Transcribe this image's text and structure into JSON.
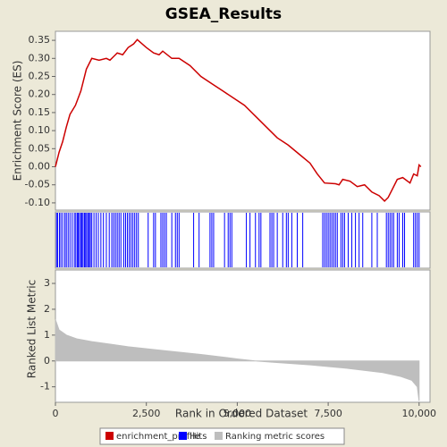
{
  "chart_data": [
    {
      "type": "line",
      "title": "GSEA_Results",
      "ylabel": "Enrichment Score (ES)",
      "xlim": [
        0,
        10300
      ],
      "ylim": [
        -0.12,
        0.375
      ],
      "yticks": [
        {
          "value": 0.35,
          "label": "0.35"
        },
        {
          "value": 0.3,
          "label": "0.30"
        },
        {
          "value": 0.25,
          "label": "0.25"
        },
        {
          "value": 0.2,
          "label": "0.20"
        },
        {
          "value": 0.15,
          "label": "0.15"
        },
        {
          "value": 0.1,
          "label": "0.10"
        },
        {
          "value": 0.05,
          "label": "0.05"
        },
        {
          "value": 0,
          "label": "0.00"
        },
        {
          "value": -0.05,
          "label": "-0.05"
        },
        {
          "value": -0.1,
          "label": "-0.10"
        }
      ],
      "x": [
        0,
        100,
        200,
        300,
        400,
        550,
        700,
        850,
        1000,
        1200,
        1400,
        1500,
        1700,
        1850,
        2000,
        2150,
        2250,
        2500,
        2700,
        2850,
        2950,
        3200,
        3400,
        3700,
        4000,
        4300,
        4600,
        4900,
        5200,
        5500,
        5800,
        6100,
        6400,
        6700,
        7000,
        7200,
        7400,
        7700,
        7800,
        7900,
        8100,
        8300,
        8500,
        8700,
        8900,
        9050,
        9150,
        9250,
        9400,
        9550,
        9750,
        9850,
        9950,
        10000,
        10050
      ],
      "series": [
        {
          "name": "enrichment_profile",
          "color": "#cc0000",
          "values": [
            0.0,
            0.04,
            0.07,
            0.11,
            0.145,
            0.17,
            0.21,
            0.27,
            0.3,
            0.295,
            0.3,
            0.295,
            0.315,
            0.31,
            0.33,
            0.34,
            0.352,
            0.33,
            0.315,
            0.31,
            0.32,
            0.3,
            0.3,
            0.28,
            0.25,
            0.23,
            0.21,
            0.19,
            0.17,
            0.14,
            0.11,
            0.08,
            0.06,
            0.035,
            0.01,
            -0.02,
            -0.045,
            -0.047,
            -0.05,
            -0.035,
            -0.04,
            -0.055,
            -0.05,
            -0.07,
            -0.08,
            -0.095,
            -0.085,
            -0.065,
            -0.035,
            -0.03,
            -0.045,
            -0.02,
            -0.025,
            0.005,
            0.0
          ]
        }
      ]
    },
    {
      "type": "rug",
      "xlim": [
        0,
        10300
      ],
      "series": [
        {
          "name": "Hits",
          "color": "#0000ff",
          "x": [
            30,
            60,
            110,
            150,
            200,
            260,
            300,
            350,
            400,
            460,
            520,
            560,
            600,
            630,
            660,
            700,
            730,
            760,
            800,
            830,
            860,
            900,
            930,
            960,
            1000,
            1060,
            1120,
            1180,
            1250,
            1320,
            1400,
            1480,
            1550,
            1600,
            1650,
            1700,
            1750,
            1800,
            1880,
            1930,
            1980,
            2030,
            2080,
            2130,
            2180,
            2230,
            2280,
            2550,
            2700,
            2750,
            2900,
            2950,
            3000,
            3050,
            3200,
            3300,
            3350,
            3400,
            3800,
            3950,
            4250,
            4300,
            4350,
            4650,
            4750,
            4800,
            4850,
            5250,
            5350,
            5500,
            5600,
            5650,
            5900,
            5950,
            6000,
            6100,
            6250,
            6350,
            6400,
            6500,
            6650,
            6800,
            7350,
            7400,
            7450,
            7500,
            7550,
            7600,
            7650,
            7700,
            7750,
            7850,
            7900,
            7950,
            8050,
            8150,
            8250,
            8350,
            8450,
            8700,
            8850,
            9100,
            9150,
            9200,
            9250,
            9300,
            9400,
            9450,
            9550,
            9600,
            9850,
            9900,
            9950,
            10000
          ]
        }
      ]
    },
    {
      "type": "area",
      "ylabel": "Ranked List Metric",
      "xlabel": "Rank in Ordered Dataset",
      "xlim": [
        0,
        10300
      ],
      "ylim": [
        -1.6,
        3.52
      ],
      "xticks": [
        0,
        {
          "value": 2500,
          "label": "2,500"
        },
        {
          "value": 5000,
          "label": "5,000"
        },
        {
          "value": 7500,
          "label": "7,500"
        },
        {
          "value": 10000,
          "label": "10,000"
        }
      ],
      "yticks": [
        3,
        2,
        1,
        0,
        -1
      ],
      "x": [
        0,
        100,
        300,
        600,
        1000,
        2000,
        3000,
        4000,
        5000,
        5500,
        6000,
        7000,
        8000,
        9000,
        9500,
        9800,
        9950,
        10000
      ],
      "series": [
        {
          "name": "Ranking metric scores",
          "color": "#bebebe",
          "values": [
            1.6,
            1.2,
            1.0,
            0.85,
            0.75,
            0.55,
            0.4,
            0.25,
            0.08,
            0,
            -0.05,
            -0.15,
            -0.28,
            -0.45,
            -0.6,
            -0.75,
            -1.0,
            -1.55
          ]
        }
      ]
    }
  ]
}
